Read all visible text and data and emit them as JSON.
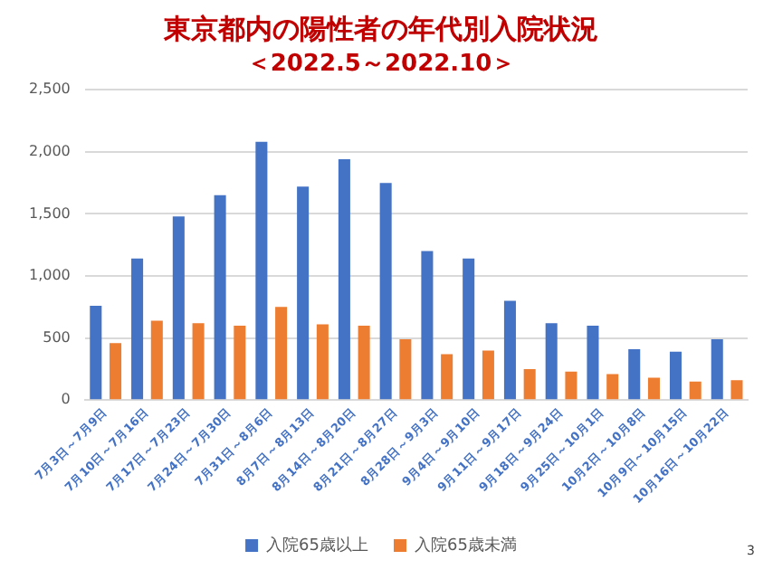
{
  "chart_data": {
    "type": "bar",
    "title": "東京都内の陽性者の年代別入院状況",
    "subtitle": "＜2022.5～2022.10＞",
    "categories": [
      "7月3日～7月9日",
      "7月10日～7月16日",
      "7月17日～7月23日",
      "7月24日～7月30日",
      "7月31日～8月6日",
      "8月7日～8月13日",
      "8月14日～8月20日",
      "8月21日～8月27日",
      "8月28日～9月3日",
      "9月4日～9月10日",
      "9月11日～9月17日",
      "9月18日～9月24日",
      "9月25日～10月1日",
      "10月2日～10月8日",
      "10月9日～10月15日",
      "10月16日～10月22日"
    ],
    "series": [
      {
        "name": "入院65歳以上",
        "color": "#4472c4",
        "values": [
          760,
          1140,
          1480,
          1650,
          2080,
          1720,
          1940,
          1750,
          1200,
          1140,
          800,
          620,
          600,
          410,
          390,
          490
        ]
      },
      {
        "name": "入院65歳未満",
        "color": "#ed7d31",
        "values": [
          460,
          640,
          620,
          600,
          750,
          610,
          600,
          490,
          370,
          400,
          250,
          230,
          210,
          180,
          150,
          160
        ]
      }
    ],
    "ylim": [
      0,
      2500
    ],
    "yticks": [
      0,
      500,
      {
        "value": 1000,
        "label": "1,000"
      },
      {
        "value": 1500,
        "label": "1,500"
      },
      {
        "value": 2000,
        "label": "2,000"
      },
      {
        "value": 2500,
        "label": "2,500"
      }
    ],
    "grid": "y",
    "legend": "bottom",
    "annotations": [
      "3"
    ]
  }
}
